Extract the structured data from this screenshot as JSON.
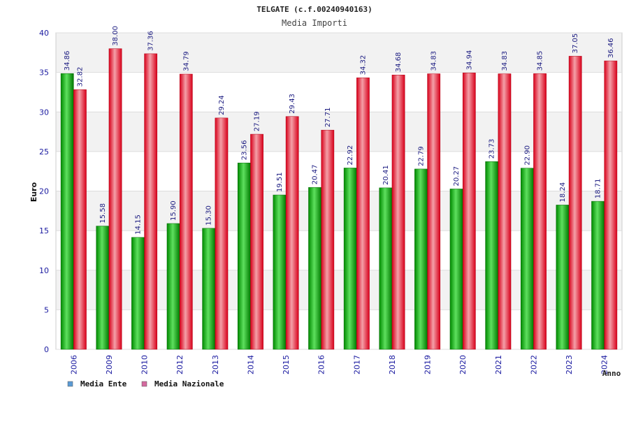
{
  "chart_data": {
    "type": "bar",
    "title": "TELGATE (c.f.00240940163)",
    "subtitle": "Media Importi",
    "ylabel": "Euro",
    "xlabel": "Anno",
    "ylim": [
      0,
      40
    ],
    "yticks": [
      0,
      5,
      10,
      15,
      20,
      25,
      30,
      35,
      40
    ],
    "grid": true,
    "legend_position": "bottom-left",
    "categories": [
      "2006",
      "2009",
      "2010",
      "2012",
      "2013",
      "2014",
      "2015",
      "2016",
      "2017",
      "2018",
      "2019",
      "2020",
      "2021",
      "2022",
      "2023",
      "2024"
    ],
    "series": [
      {
        "name": "Media Ente",
        "color": "#00b000",
        "legend_color": "#5b9bd5",
        "values": [
          34.86,
          15.58,
          14.15,
          15.9,
          15.3,
          23.56,
          19.51,
          20.47,
          22.92,
          20.41,
          22.79,
          20.27,
          23.73,
          22.9,
          18.24,
          18.71
        ],
        "labels": [
          "34.86",
          "15.58",
          "14.15",
          "15.90",
          "15.30",
          "23.56",
          "19.51",
          "20.47",
          "22.92",
          "20.41",
          "22.79",
          "20.27",
          "23.73",
          "22.90",
          "18.24",
          "18.71"
        ]
      },
      {
        "name": "Media Nazionale",
        "color": "#e8001c",
        "legend_color": "#d46a9f",
        "values": [
          32.82,
          38.0,
          37.36,
          34.79,
          29.24,
          27.19,
          29.43,
          27.71,
          34.32,
          34.68,
          34.83,
          34.94,
          34.83,
          34.85,
          37.05,
          36.46
        ],
        "labels": [
          "32.82",
          "38.00",
          "37.36",
          "34.79",
          "29.24",
          "27.19",
          "29.43",
          "27.71",
          "34.32",
          "34.68",
          "34.83",
          "34.94",
          "34.83",
          "34.85",
          "37.05",
          "36.46"
        ]
      }
    ]
  }
}
